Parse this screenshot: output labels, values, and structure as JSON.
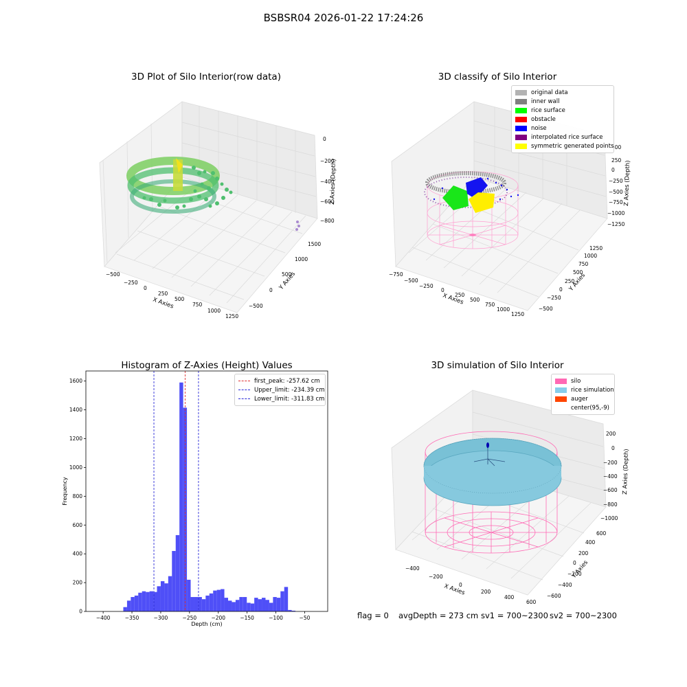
{
  "suptitle": "BSBSR04 2026-01-22 17:24:26",
  "colors": {
    "hist_bar": "#4f4ff7",
    "first_peak": "#e03030",
    "limit": "#2a2ad8",
    "silo": "#ff69b4",
    "rice_simulation": "#87ceeb",
    "auger": "#ff4500"
  },
  "plot1": {
    "title": "3D Plot of Silo Interior(row data)",
    "xlabel": "X Axies",
    "ylabel": "Y Axies",
    "zlabel": "Z Axies (Depth)",
    "xticks": [
      "−500",
      "−250",
      "0",
      "250",
      "500",
      "750",
      "1000",
      "1250"
    ],
    "yticks": [
      "−500",
      "0",
      "500",
      "1000",
      "1500"
    ],
    "zticks": [
      "0",
      "−200",
      "−400",
      "−600",
      "−800"
    ]
  },
  "plot2": {
    "title": "3D classify of Silo Interior",
    "xlabel": "X Axies",
    "ylabel": "Y Axies",
    "zlabel": "Z Axies (Depth)",
    "xticks": [
      "−750",
      "−500",
      "−250",
      "0",
      "250",
      "500",
      "750",
      "1000",
      "1250"
    ],
    "yticks": [
      "−500",
      "−250",
      "0",
      "250",
      "500",
      "750",
      "1000",
      "1250"
    ],
    "zticks": [
      "500",
      "250",
      "0",
      "−250",
      "−500",
      "−750",
      "−1000",
      "−1250"
    ],
    "legend": [
      {
        "label": "original data",
        "color": "#b3b3b3"
      },
      {
        "label": "inner wall",
        "color": "#808080"
      },
      {
        "label": "rice surface",
        "color": "#00ff00"
      },
      {
        "label": "obstacle",
        "color": "#ff0000"
      },
      {
        "label": "noise",
        "color": "#0000ff"
      },
      {
        "label": "interpolated rice surface",
        "color": "#800080"
      },
      {
        "label": "symmetric generated points",
        "color": "#ffff00"
      }
    ]
  },
  "plot4": {
    "title": "3D simulation of Silo Interior",
    "xlabel": "X Axies",
    "ylabel": "Y Axies",
    "zlabel": "Z Axies (Depth)",
    "xticks": [
      "−400",
      "−200",
      "0",
      "200",
      "400",
      "600"
    ],
    "yticks": [
      "−600",
      "−400",
      "−200",
      "0",
      "200",
      "400",
      "600"
    ],
    "zticks": [
      "200",
      "0",
      "−200",
      "−400",
      "−600",
      "−800",
      "−1000"
    ],
    "legend": [
      {
        "label": "silo",
        "color": "#ff69b4"
      },
      {
        "label": "rice simulation",
        "color": "#87ceeb"
      },
      {
        "label": "auger",
        "color": "#ff4500"
      },
      {
        "label": "center(95,-9)",
        "color": ""
      }
    ]
  },
  "stats": {
    "flag": "flag = 0",
    "avg": "avgDepth = 273 cm",
    "sv1": "sv1 = 700~2300",
    "sv2": "sv2 = 700~2300"
  },
  "chart_data": [
    {
      "type": "bar",
      "title": "Histogram of Z-Axies (Height) Values",
      "xlabel": "Depth (cm)",
      "ylabel": "Frequency",
      "xlim": [
        -430,
        -10
      ],
      "ylim": [
        0,
        1670
      ],
      "xticks": [
        -400,
        -350,
        -300,
        -250,
        -200,
        -150,
        -100,
        -50
      ],
      "yticks": [
        0,
        200,
        400,
        600,
        800,
        1000,
        1200,
        1400,
        1600
      ],
      "bin_width": 6.5,
      "bins_start": [
        -365,
        -358.5,
        -352,
        -345.5,
        -339,
        -332.5,
        -326,
        -319.5,
        -313,
        -306.5,
        -300,
        -293.5,
        -287,
        -280.5,
        -274,
        -267.5,
        -261,
        -254.5,
        -248,
        -241.5,
        -235,
        -228.5,
        -222,
        -215.5,
        -209,
        -202.5,
        -196,
        -189.5,
        -183,
        -176.5,
        -170,
        -163.5,
        -157,
        -150.5,
        -144,
        -137.5,
        -131,
        -124.5,
        -118,
        -111.5,
        -105,
        -98.5,
        -92,
        -85.5,
        -79,
        -72.5,
        -66,
        -59.5,
        -53,
        -46.5,
        -40,
        -33.5
      ],
      "values": [
        30,
        75,
        100,
        110,
        130,
        140,
        135,
        140,
        135,
        175,
        210,
        195,
        245,
        420,
        530,
        1590,
        1415,
        220,
        100,
        100,
        100,
        85,
        110,
        125,
        145,
        150,
        155,
        95,
        75,
        65,
        80,
        100,
        100,
        60,
        55,
        95,
        85,
        95,
        80,
        60,
        100,
        95,
        140,
        170,
        10,
        5,
        0,
        0,
        0,
        0,
        0,
        0
      ],
      "vlines": [
        {
          "label": "first_peak: -257.62 cm",
          "x": -257.62,
          "color": "#e03030"
        },
        {
          "label": "Upper_limit: -234.39 cm",
          "x": -234.39,
          "color": "#2a2ad8"
        },
        {
          "label": "Lower_limit: -311.83 cm",
          "x": -311.83,
          "color": "#2a2ad8"
        }
      ],
      "legend_position": "top-right"
    }
  ]
}
